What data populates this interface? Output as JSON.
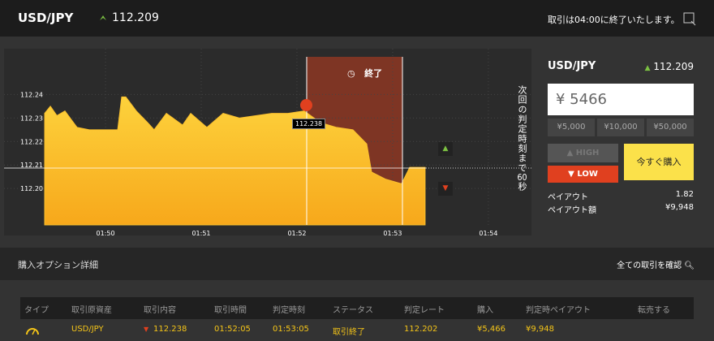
{
  "header": {
    "symbol": "USD/JPY",
    "rate": "112.209",
    "notice": "取引は04:00に終了いたします。"
  },
  "chart": {
    "type": "area",
    "x": [
      109.364,
      109.424,
      109.492,
      109.576,
      109.703,
      109.831,
      109.958,
      110.127,
      110.169,
      110.212,
      110.322,
      110.441,
      110.508,
      110.636,
      110.805,
      110.89,
      111.059,
      111.229,
      111.398,
      111.568,
      111.737,
      111.907,
      112.076,
      112.246,
      112.415,
      112.585,
      112.729,
      112.78,
      112.924,
      113.093,
      113.178,
      113.339
    ],
    "values": [
      112.232,
      112.235,
      112.231,
      112.233,
      112.226,
      112.225,
      112.225,
      112.225,
      112.239,
      112.239,
      112.233,
      112.228,
      112.225,
      112.232,
      112.227,
      112.232,
      112.226,
      112.232,
      112.23,
      112.231,
      112.232,
      112.232,
      112.233,
      112.228,
      112.226,
      112.225,
      112.219,
      112.207,
      112.204,
      112.202,
      112.209,
      112.209
    ],
    "xlim": [
      108.94,
      114.45
    ],
    "ylim": [
      112.1845,
      112.2595
    ],
    "xticks": [
      {
        "value": 110,
        "label": "01:50"
      },
      {
        "value": 111,
        "label": "01:51"
      },
      {
        "value": 112,
        "label": "01:52"
      },
      {
        "value": 113,
        "label": "01:53"
      },
      {
        "value": 114,
        "label": "01:54"
      }
    ],
    "yticks": [
      {
        "value": 112.2,
        "label": "112.20"
      },
      112.21,
      112.22,
      112.23,
      112.24
    ],
    "color": "#fbc02d",
    "grid": true,
    "entry_label": "112.238",
    "expiry_label": "終了",
    "countdown": {
      "text": "次回の判定時刻まで",
      "seconds": "60",
      "unit": "秒"
    }
  },
  "panel": {
    "symbol": "USD/JPY",
    "rate": "112.209",
    "amount": "¥ 5466",
    "presets": [
      "¥5,000",
      "¥10,000",
      "¥50,000"
    ],
    "high": "HIGH",
    "low": "LOW",
    "buy": "今すぐ購入",
    "payout_label": "ペイアウト",
    "payout": "1.82",
    "payout_amount_label": "ペイアウト額",
    "payout_amount": "¥9,948"
  },
  "details": {
    "title": "購入オプション詳細",
    "link": "全ての取引を確認",
    "columns": [
      "タイプ",
      "取引原資産",
      "取引内容",
      "取引時間",
      "判定時刻",
      "ステータス",
      "判定レート",
      "購入",
      "判定時ペイアウト",
      "転売する"
    ],
    "rows": [
      [
        "USD/JPY",
        "112.238",
        "01:52:05",
        "01:53:05",
        "取引終了",
        "112.202",
        "¥5,466",
        "¥9,948"
      ]
    ]
  }
}
